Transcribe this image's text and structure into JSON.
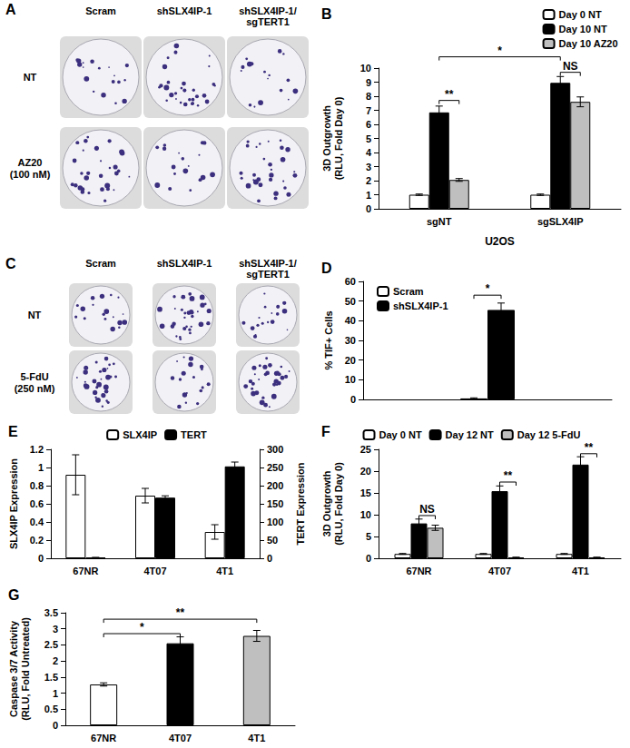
{
  "plate_panels": [
    {
      "panel": "A",
      "columns": [
        [
          "Scram"
        ],
        [
          "shSLX4IP-1"
        ],
        [
          "shSLX4IP-1/",
          "sgTERT1"
        ]
      ],
      "rows": [
        [
          "NT"
        ],
        [
          "AZ20",
          "(100 nM)"
        ]
      ]
    },
    {
      "panel": "C",
      "columns": [
        [
          "Scram"
        ],
        [
          "shSLX4IP-1"
        ],
        [
          "shSLX4IP-1/",
          "sgTERT1"
        ]
      ],
      "rows": [
        [
          "NT"
        ],
        [
          "5-FdU",
          "(250 nM)"
        ]
      ]
    }
  ],
  "chart_data": [
    {
      "panel": "B",
      "type": "bar",
      "categories": [
        "sgNT",
        "sgSLX4IP"
      ],
      "xlabel": "U2OS",
      "ylabel": [
        "3D Outgrowth",
        "(RLU, Fold Day 0)"
      ],
      "ylim": [
        0,
        10
      ],
      "yticks": [
        0,
        1,
        2,
        3,
        4,
        5,
        6,
        7,
        8,
        9,
        10
      ],
      "legend": "top-right",
      "series": [
        {
          "name": "Day 0 NT",
          "color": "#ffffff",
          "values": [
            1,
            1
          ],
          "errors": [
            0.05,
            0.05
          ]
        },
        {
          "name": "Day 10 NT",
          "color": "#000000",
          "values": [
            6.85,
            8.95
          ],
          "errors": [
            0.45,
            0.45
          ]
        },
        {
          "name": "Day 10 AZ20",
          "color": "#bfbfbf",
          "values": [
            2.05,
            7.6
          ],
          "errors": [
            0.1,
            0.35
          ]
        }
      ],
      "annotations": [
        {
          "text": "**",
          "bars": [
            [
              0,
              1
            ],
            [
              0,
              2
            ]
          ],
          "y": 7.7
        },
        {
          "text": "*",
          "bars": [
            [
              0,
              1
            ],
            [
              1,
              1
            ]
          ],
          "y": 10.8
        },
        {
          "text": "NS",
          "bars": [
            [
              1,
              1
            ],
            [
              1,
              2
            ]
          ],
          "y": 9.7
        }
      ]
    },
    {
      "panel": "D",
      "type": "bar",
      "categories": [
        null
      ],
      "ylabel": "% TIF+ Cells",
      "ylim": [
        0,
        60
      ],
      "yticks": [
        0,
        10,
        20,
        30,
        40,
        50,
        60
      ],
      "legend": "top-left",
      "series": [
        {
          "name": "Scram",
          "color": "#ffffff",
          "values": [
            0.5
          ],
          "errors": [
            0.3
          ]
        },
        {
          "name": "shSLX4IP-1",
          "color": "#000000",
          "values": [
            45.5
          ],
          "errors": [
            3.5
          ]
        }
      ],
      "annotations": [
        {
          "text": "*",
          "bars": [
            [
              0,
              0
            ],
            [
              0,
              1
            ]
          ],
          "y": 53
        }
      ]
    },
    {
      "panel": "E",
      "type": "bar",
      "categories": [
        "67NR",
        "4T07",
        "4T1"
      ],
      "ylabel": "SLX4IP Expression",
      "y2label": "TERT Expression",
      "ylim": [
        0,
        1.2
      ],
      "yticks": [
        0,
        0.2,
        0.4,
        0.6,
        0.8,
        1,
        1.2
      ],
      "y2lim": [
        0,
        300
      ],
      "y2ticks": [
        0,
        50,
        100,
        150,
        200,
        250,
        300
      ],
      "legend": "top",
      "series": [
        {
          "name": "SLX4IP",
          "color": "#ffffff",
          "values": [
            0.92,
            0.69,
            0.29
          ],
          "errors": [
            0.22,
            0.08,
            0.08
          ]
        },
        {
          "name": "TERT",
          "color": "#000000",
          "axis": "y2",
          "values": [
            2,
            167,
            253
          ],
          "errors": [
            0.5,
            5,
            12
          ]
        }
      ]
    },
    {
      "panel": "F",
      "type": "bar",
      "categories": [
        "67NR",
        "4T07",
        "4T1"
      ],
      "ylabel": [
        "3D Outgrowth",
        "(RLU, Fold Day 0)"
      ],
      "ylim": [
        0,
        25
      ],
      "yticks": [
        0,
        5,
        10,
        15,
        20,
        25
      ],
      "legend": "top",
      "series": [
        {
          "name": "Day 0 NT",
          "color": "#ffffff",
          "values": [
            1,
            1,
            1
          ],
          "errors": [
            0.1,
            0.1,
            0.1
          ]
        },
        {
          "name": "Day 12 NT",
          "color": "#000000",
          "values": [
            8.0,
            15.4,
            21.5
          ],
          "errors": [
            1.0,
            1.2,
            1.8
          ]
        },
        {
          "name": "Day 12 5-FdU",
          "color": "#bfbfbf",
          "values": [
            7.0,
            0.2,
            0.2
          ],
          "errors": [
            0.6,
            0.05,
            0.05
          ]
        }
      ],
      "annotations": [
        {
          "text": "NS",
          "bars": [
            [
              0,
              1
            ],
            [
              0,
              2
            ]
          ],
          "y": 9.8
        },
        {
          "text": "**",
          "bars": [
            [
              1,
              1
            ],
            [
              1,
              2
            ]
          ],
          "y": 17.5
        },
        {
          "text": "**",
          "bars": [
            [
              2,
              1
            ],
            [
              2,
              2
            ]
          ],
          "y": 24
        }
      ]
    },
    {
      "panel": "G",
      "type": "bar",
      "categories": [
        "67NR",
        "4T07",
        "4T1"
      ],
      "ylabel": [
        "Caspase 3/7 Activity",
        "(RLU, Fold Untreated)"
      ],
      "ylim": [
        0,
        3.5
      ],
      "yticks": [
        0,
        0.5,
        1,
        1.5,
        2,
        2.5,
        3,
        3.5
      ],
      "values": [
        1.27,
        2.55,
        2.78
      ],
      "errors": [
        0.05,
        0.2,
        0.17
      ],
      "colors": [
        "#ffffff",
        "#000000",
        "#bfbfbf"
      ],
      "annotations": [
        {
          "text": "*",
          "bars": [
            [
              0,
              0
            ],
            [
              1,
              0
            ]
          ],
          "y": 2.85
        },
        {
          "text": "**",
          "bars": [
            [
              0,
              0
            ],
            [
              2,
              0
            ]
          ],
          "y": 3.3
        }
      ]
    }
  ]
}
